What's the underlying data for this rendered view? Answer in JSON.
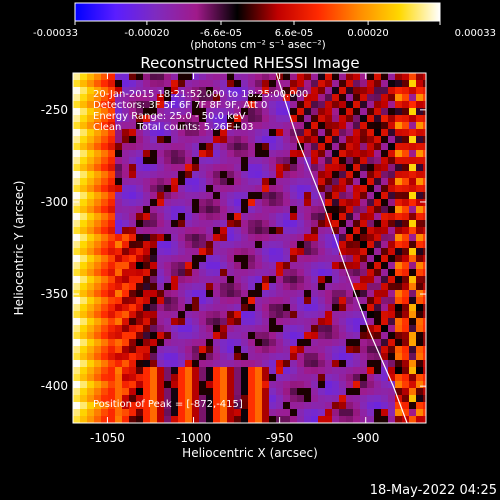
{
  "chart_data": {
    "type": "heatmap",
    "title": "Reconstructed RHESSI Image",
    "xlabel": "Heliocentric X (arcsec)",
    "ylabel": "Heliocentric Y (arcsec)",
    "xlim": [
      -1070,
      -865
    ],
    "ylim": [
      -420,
      -230
    ],
    "x_ticks": [
      -1050,
      -1000,
      -950,
      -900
    ],
    "y_ticks": [
      -250,
      -300,
      -350,
      -400
    ],
    "colorbar": {
      "min": -0.00033,
      "max": 0.00033,
      "tick_values": [
        -0.00033,
        -0.0002,
        -6.6e-05,
        6.6e-05,
        0.0002,
        0.00033
      ],
      "tick_labels": [
        "-0.00033",
        "-0.00020",
        "-6.6e-05",
        "6.6e-05",
        "0.00020",
        "0.00033"
      ],
      "unit_label": "(photons cm⁻² s⁻¹ asec⁻²)",
      "colormap": [
        "#0000ff",
        "#5a1eff",
        "#7f2bbf",
        "#a01a8a",
        "#000000",
        "#c00000",
        "#ff2a00",
        "#ff8a00",
        "#ffd800",
        "#ffffff"
      ]
    },
    "info_lines": [
      "20-Jan-2015 18:21:52.000 to 18:25:00.000",
      "Detectors: 3F 5F 6F 7F 8F 9F, Att 0",
      "Energy Range: 25.0 - 50.0 keV",
      "Clean     Total counts: 5.26E+03"
    ],
    "peak_label": "Position of Peak = [-872,-415]",
    "peak_position": [
      -872,
      -415
    ],
    "limb_curve": [
      [
        -952,
        -230
      ],
      [
        -940,
        -265
      ],
      [
        -925,
        -300
      ],
      [
        -912,
        -335
      ],
      [
        -898,
        -370
      ],
      [
        -884,
        -400
      ],
      [
        -876,
        -420
      ]
    ],
    "grid": false
  },
  "footer": {
    "timestamp": "18-May-2022 04:25"
  }
}
